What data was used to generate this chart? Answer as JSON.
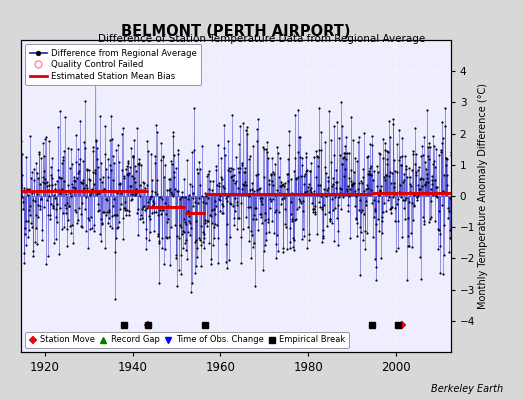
{
  "title": "BELMONT (PERTH AIRPORT)",
  "subtitle": "Difference of Station Temperature Data from Regional Average",
  "ylabel": "Monthly Temperature Anomaly Difference (°C)",
  "xlabel_credit": "Berkeley Earth",
  "xlim": [
    1914.5,
    2012.5
  ],
  "ylim": [
    -5,
    5
  ],
  "yticks": [
    -4,
    -3,
    -2,
    -1,
    0,
    1,
    2,
    3,
    4
  ],
  "xticks": [
    1920,
    1940,
    1960,
    1980,
    2000
  ],
  "year_start": 1914,
  "year_end": 2012,
  "bias_segments": [
    {
      "x_start": 1914,
      "x_end": 1943.5,
      "bias": 0.15
    },
    {
      "x_start": 1943.5,
      "x_end": 1952.0,
      "bias": -0.35
    },
    {
      "x_start": 1952.0,
      "x_end": 1956.5,
      "bias": -0.55
    },
    {
      "x_start": 1956.5,
      "x_end": 1994.5,
      "bias": 0.05
    },
    {
      "x_start": 1994.5,
      "x_end": 2000.5,
      "bias": 0.1
    },
    {
      "x_start": 2000.5,
      "x_end": 2012.5,
      "bias": 0.1
    }
  ],
  "station_moves": [
    1943.5,
    2001.5
  ],
  "empirical_breaks": [
    1938.0,
    1943.5,
    1956.5,
    1994.5,
    2000.5
  ],
  "line_color": "#3333cc",
  "fill_color": "#aaaaee",
  "bias_color": "#dd0000",
  "dot_color": "#000000",
  "background_color": "#d8d8d8",
  "plot_bg_color": "#eeeeff",
  "legend1_labels": [
    "Difference from Regional Average",
    "Quality Control Failed",
    "Estimated Station Mean Bias"
  ],
  "legend2_labels": [
    "Station Move",
    "Record Gap",
    "Time of Obs. Change",
    "Empirical Break"
  ],
  "seed": 42
}
